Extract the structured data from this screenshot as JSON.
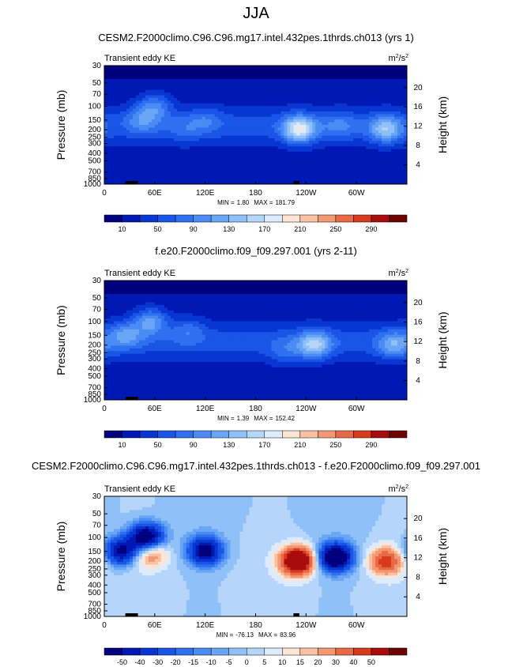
{
  "page_title": "JJA",
  "colors": {
    "ke_scale": [
      "#00007f",
      "#0018b4",
      "#0836d0",
      "#1a55e6",
      "#2f70f0",
      "#4a8cf4",
      "#6aa6f6",
      "#8fc0f8",
      "#b5d6fa",
      "#dcebfd",
      "#fde4d3",
      "#f9c0a1",
      "#f29872",
      "#e86a45",
      "#d83a1e",
      "#a80c0c",
      "#6d0303"
    ],
    "diff_scale": [
      "#00007f",
      "#0018b4",
      "#0836d0",
      "#1a55e6",
      "#2f70f0",
      "#4a8cf4",
      "#6aa6f6",
      "#8fc0f8",
      "#b5d6fa",
      "#dcebfd",
      "#fde4d3",
      "#f9c0a1",
      "#f29872",
      "#e86a45",
      "#d83a1e",
      "#a80c0c",
      "#6d0303"
    ],
    "terrain": "#000000"
  },
  "chart_data": [
    {
      "type": "heatmap",
      "title": "CESM2.F2000climo.C96.C96.mg17.intel.432pes.1thrds.ch013 (yrs 1)",
      "left_label": "Transient eddy KE",
      "units_base": "m",
      "units_exp": "2",
      "units_mid": "/s",
      "units_exp2": "2",
      "xlabel": "",
      "ylabel": "Pressure (mb)",
      "y2label": "Height (km)",
      "x_ticks": [
        "0",
        "60E",
        "120E",
        "180",
        "120W",
        "60W"
      ],
      "y_ticks": [
        "30",
        "50",
        "70",
        "100",
        "150",
        "200",
        "250",
        "300",
        "400",
        "500",
        "700",
        "850",
        "1000"
      ],
      "y2_ticks": [
        "20",
        "16",
        "12",
        "8",
        "4"
      ],
      "min_label": "MIN =",
      "min_value": "1.80",
      "max_label": "MAX =",
      "max_value": "181.79",
      "levels": [
        "10",
        "50",
        "90",
        "130",
        "170",
        "210",
        "250",
        "290"
      ],
      "level_values": [
        10,
        30,
        50,
        70,
        90,
        110,
        130,
        150,
        170,
        190,
        210,
        230,
        250,
        270,
        290
      ],
      "field": {
        "lon": [
          0,
          30,
          60,
          90,
          120,
          150,
          180,
          210,
          240,
          270,
          300,
          330,
          360
        ],
        "p": [
          30,
          50,
          100,
          150,
          200,
          300,
          400,
          700,
          1000
        ],
        "hotspots": [
          {
            "lon": 60,
            "p": 100,
            "val": 110
          },
          {
            "lon": 45,
            "p": 150,
            "val": 95
          },
          {
            "lon": 120,
            "p": 150,
            "val": 80
          },
          {
            "lon": 232,
            "p": 200,
            "val": 181
          },
          {
            "lon": 335,
            "p": 200,
            "val": 140
          },
          {
            "lon": 95,
            "p": 200,
            "val": 70
          },
          {
            "lon": 280,
            "p": 180,
            "val": 85
          }
        ]
      },
      "background": 55,
      "scale": "ke_scale"
    },
    {
      "type": "heatmap",
      "title": "f.e20.F2000climo.f09_f09.297.001 (yrs 2-11)",
      "left_label": "Transient eddy KE",
      "units_base": "m",
      "units_exp": "2",
      "units_mid": "/s",
      "units_exp2": "2",
      "xlabel": "",
      "ylabel": "Pressure (mb)",
      "y2label": "Height (km)",
      "x_ticks": [
        "0",
        "60E",
        "120E",
        "180",
        "120W",
        "60W"
      ],
      "y_ticks": [
        "30",
        "50",
        "70",
        "100",
        "150",
        "200",
        "250",
        "300",
        "400",
        "500",
        "700",
        "850",
        "1000"
      ],
      "y2_ticks": [
        "20",
        "16",
        "12",
        "8",
        "4"
      ],
      "min_label": "MIN =",
      "min_value": "1.39",
      "max_label": "MAX =",
      "max_value": "152.42",
      "levels": [
        "10",
        "50",
        "90",
        "130",
        "170",
        "210",
        "250",
        "290"
      ],
      "level_values": [
        10,
        30,
        50,
        70,
        90,
        110,
        130,
        150,
        170,
        190,
        210,
        230,
        250,
        270,
        290
      ],
      "field": {
        "lon": [
          0,
          30,
          60,
          90,
          120,
          150,
          180,
          210,
          240,
          270,
          300,
          330,
          360
        ],
        "p": [
          30,
          50,
          100,
          150,
          200,
          300,
          400,
          700,
          1000
        ],
        "hotspots": [
          {
            "lon": 55,
            "p": 100,
            "val": 130
          },
          {
            "lon": 25,
            "p": 150,
            "val": 110
          },
          {
            "lon": 100,
            "p": 130,
            "val": 85
          },
          {
            "lon": 250,
            "p": 200,
            "val": 152
          },
          {
            "lon": 345,
            "p": 200,
            "val": 120
          },
          {
            "lon": 215,
            "p": 250,
            "val": 80
          }
        ]
      },
      "background": 55,
      "scale": "ke_scale"
    },
    {
      "type": "heatmap",
      "title": "CESM2.F2000climo.C96.C96.mg17.intel.432pes.1thrds.ch013 - f.e20.F2000climo.f09_f09.297.001",
      "left_label": "Transient eddy KE",
      "units_base": "m",
      "units_exp": "2",
      "units_mid": "/s",
      "units_exp2": "2",
      "xlabel": "",
      "ylabel": "Pressure (mb)",
      "y2label": "Height (km)",
      "x_ticks": [
        "0",
        "60E",
        "120E",
        "180",
        "120W",
        "60W"
      ],
      "y_ticks": [
        "30",
        "50",
        "70",
        "100",
        "150",
        "200",
        "250",
        "300",
        "400",
        "500",
        "700",
        "850",
        "1000"
      ],
      "y2_ticks": [
        "20",
        "16",
        "12",
        "8",
        "4"
      ],
      "min_label": "MIN =",
      "min_value": "-76.13",
      "max_label": "MAX =",
      "max_value": "83.96",
      "levels": [
        "-50",
        "-40",
        "-30",
        "-20",
        "-15",
        "-10",
        "-5",
        "0",
        "5",
        "10",
        "15",
        "20",
        "30",
        "40",
        "50"
      ],
      "level_values": [
        -50,
        -40,
        -30,
        -20,
        -15,
        -10,
        -5,
        0,
        5,
        10,
        15,
        20,
        30,
        40,
        50
      ],
      "field": {
        "lon": [
          0,
          30,
          60,
          90,
          120,
          150,
          180,
          210,
          240,
          270,
          300,
          330,
          360
        ],
        "p": [
          30,
          50,
          100,
          150,
          200,
          300,
          400,
          700,
          1000
        ],
        "hotspots": [
          {
            "lon": 50,
            "p": 100,
            "val": -70
          },
          {
            "lon": 20,
            "p": 150,
            "val": -55
          },
          {
            "lon": 55,
            "p": 160,
            "val": 30
          },
          {
            "lon": 120,
            "p": 150,
            "val": -60
          },
          {
            "lon": 230,
            "p": 200,
            "val": 84
          },
          {
            "lon": 275,
            "p": 180,
            "val": -76
          },
          {
            "lon": 335,
            "p": 200,
            "val": 45
          }
        ]
      },
      "background": 0,
      "scale": "diff_scale"
    }
  ]
}
